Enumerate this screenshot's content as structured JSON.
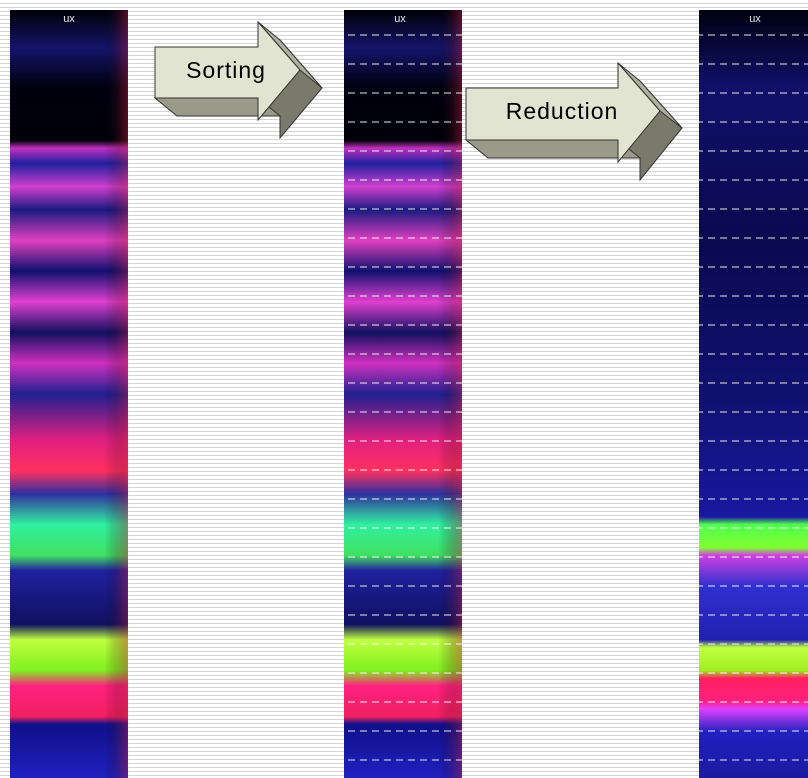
{
  "panels": [
    {
      "label": "ux"
    },
    {
      "label": "ux"
    },
    {
      "label": "ux"
    }
  ],
  "arrows": [
    {
      "label": "Sorting"
    },
    {
      "label": "Reduction"
    }
  ]
}
